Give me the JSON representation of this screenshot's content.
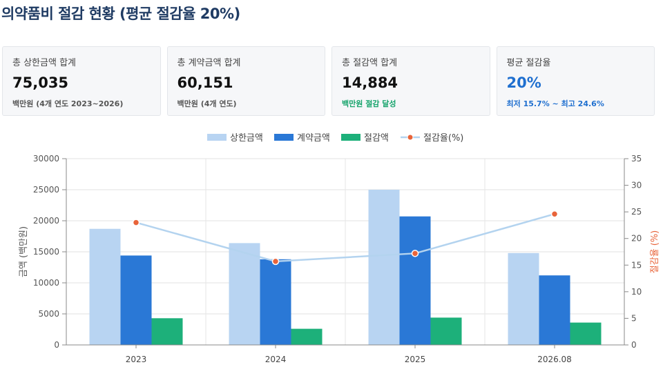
{
  "title": "의약품비 절감 현황 (평균 절감율 20%)",
  "cards": [
    {
      "label": "총 상한금액 합계",
      "value": "75,035",
      "note": "백만원 (4개 연도 2023~2026)",
      "accent": false,
      "note_style": "gray"
    },
    {
      "label": "총 계약금액 합계",
      "value": "60,151",
      "note": "백만원 (4개 연도)",
      "accent": false,
      "note_style": "gray"
    },
    {
      "label": "총 절감액 합계",
      "value": "14,884",
      "note": "백만원 절감 달성",
      "accent": false,
      "note_style": "green"
    },
    {
      "label": "평균 절감율",
      "value": "20%",
      "note": "최저 15.7% ~ 최고 24.6%",
      "accent": true,
      "note_style": "blue"
    }
  ],
  "colors": {
    "ceiling": "#b8d4f2",
    "contract": "#2a78d6",
    "saving": "#1db07a",
    "rate_line": "#b3d3ef",
    "rate_marker": "#e8643a",
    "right_axis_label": "#e8643a"
  },
  "chart_data": {
    "type": "bar",
    "categories": [
      "2023",
      "2024",
      "2025",
      "2026.08"
    ],
    "series": [
      {
        "name": "상한금액",
        "values": [
          18700,
          16400,
          25000,
          14800
        ],
        "axis": "left",
        "kind": "bar",
        "color_key": "ceiling"
      },
      {
        "name": "계약금액",
        "values": [
          14400,
          13800,
          20700,
          11200
        ],
        "axis": "left",
        "kind": "bar",
        "color_key": "contract"
      },
      {
        "name": "절감액",
        "values": [
          4300,
          2600,
          4400,
          3600
        ],
        "axis": "left",
        "kind": "bar",
        "color_key": "saving"
      },
      {
        "name": "절감율(%)",
        "values": [
          23.0,
          15.7,
          17.2,
          24.6
        ],
        "axis": "right",
        "kind": "line",
        "color_key": "rate_line"
      }
    ],
    "ylabel": "금액 (백만원)",
    "y2label": "절감율 (%)",
    "ylim": [
      0,
      30000
    ],
    "y2lim": [
      0,
      35
    ],
    "yticks": [
      "0",
      "5000",
      "10000",
      "15000",
      "20000",
      "25000",
      "30000"
    ],
    "y2ticks": [
      "0",
      "5",
      "10",
      "15",
      "20",
      "25",
      "30",
      "35"
    ],
    "legend_position": "top-center",
    "grid": true
  }
}
